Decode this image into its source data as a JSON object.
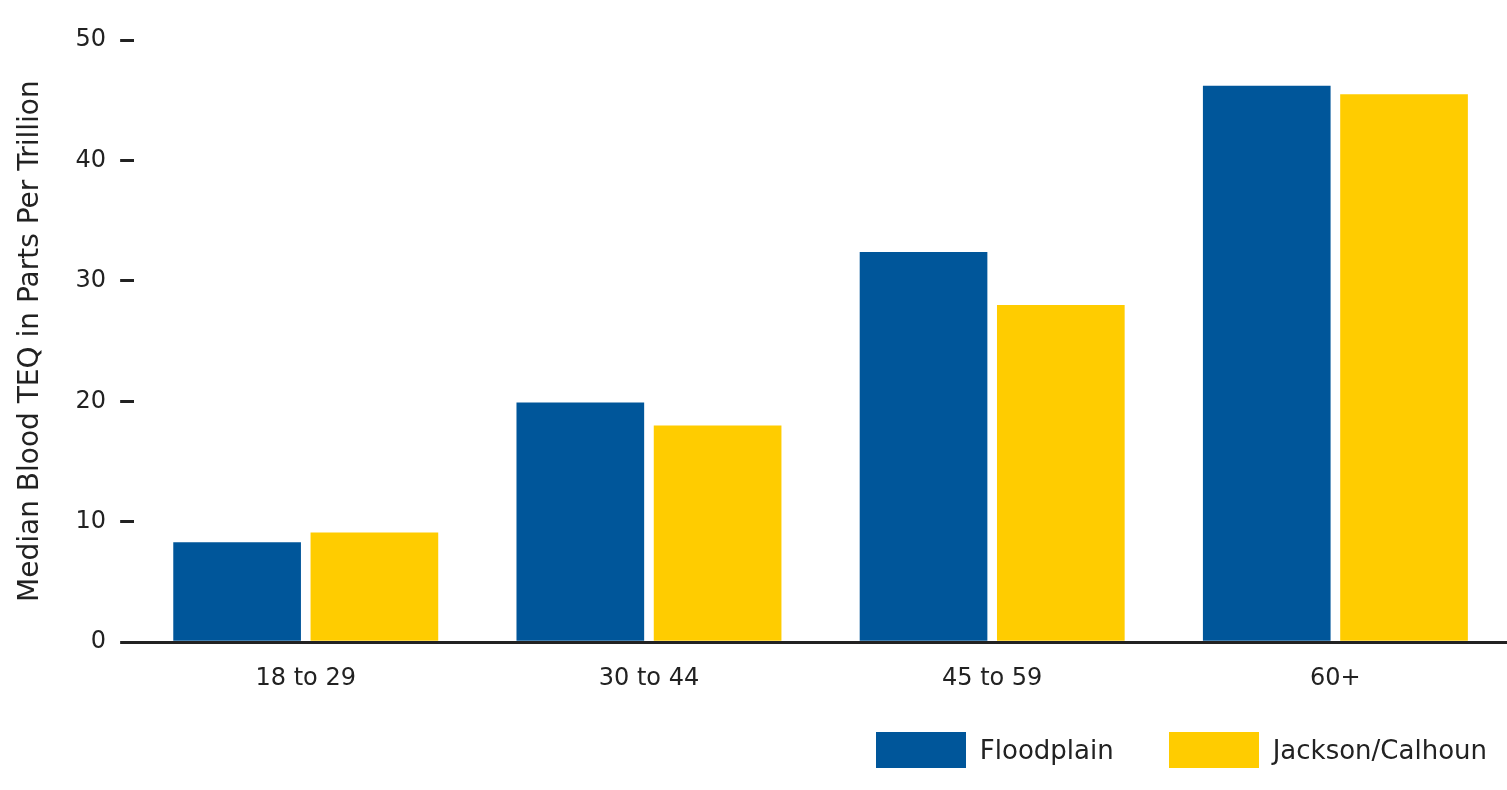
{
  "chart_data": {
    "type": "bar",
    "ylabel": "Median Blood TEQ in Parts Per Trillion",
    "categories": [
      "18 to 29",
      "30 to 44",
      "45 to 59",
      "60+"
    ],
    "series": [
      {
        "name": "Floodplain",
        "color": "#00569a",
        "values": [
          8.3,
          19.9,
          32.4,
          46.2
        ]
      },
      {
        "name": "Jackson/Calhoun",
        "color": "#ffcc00",
        "values": [
          9.1,
          18.0,
          28.0,
          45.5
        ]
      }
    ],
    "ylim": [
      0,
      50
    ],
    "yticks": [
      0,
      10,
      20,
      30,
      40,
      50
    ],
    "grid": false,
    "legend": "bottom right"
  }
}
